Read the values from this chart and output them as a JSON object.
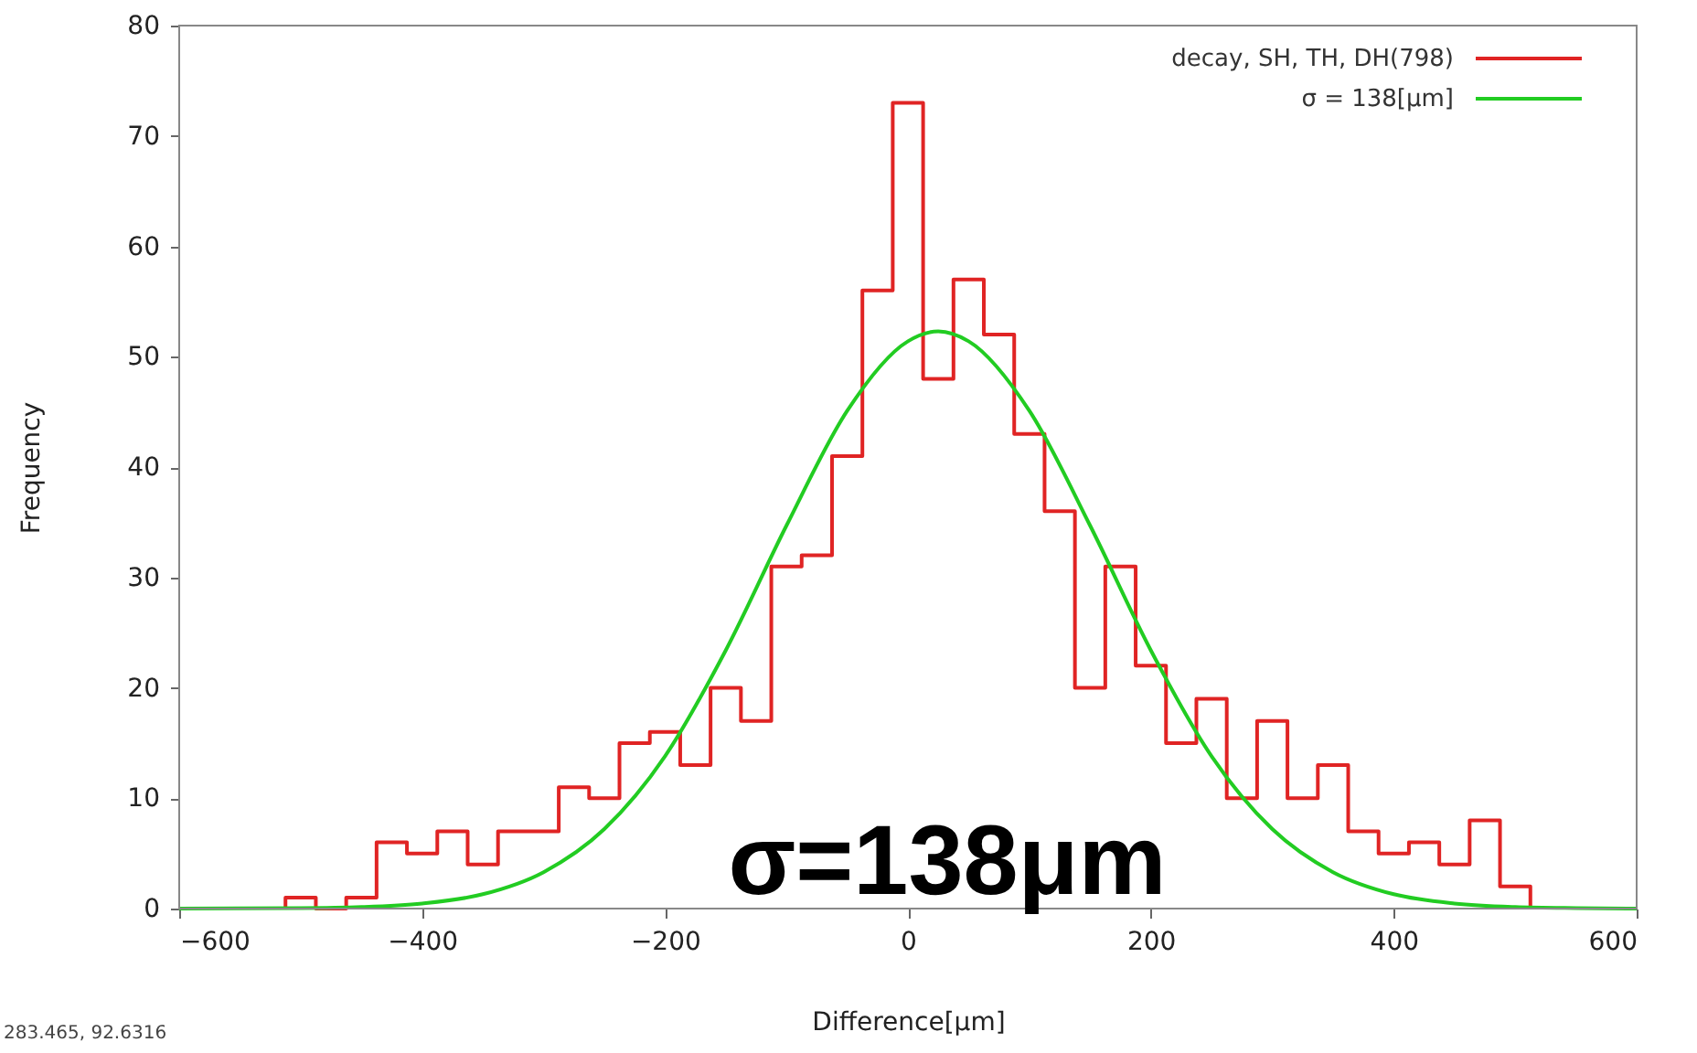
{
  "chart_data": {
    "type": "histogram",
    "xlabel": "Difference[μm]",
    "ylabel": "Frequency",
    "bins": [
      -512.5,
      -487.5,
      -462.5,
      -437.5,
      -412.5,
      -387.5,
      -362.5,
      -337.5,
      -312.5,
      -287.5,
      -262.5,
      -237.5,
      -212.5,
      -187.5,
      -162.5,
      -137.5,
      -112.5,
      -87.5,
      -62.5,
      -37.5,
      -12.5,
      12.5,
      37.5,
      62.5,
      87.5,
      112.5,
      137.5,
      162.5,
      187.5,
      212.5,
      237.5,
      262.5,
      287.5,
      312.5,
      337.5,
      362.5,
      387.5,
      412.5,
      437.5,
      462.5,
      487.5,
      512.5
    ],
    "series": [
      {
        "name": "decay, SH, TH, DH(798)",
        "color": "#e02424",
        "values": [
          1,
          0,
          1,
          6,
          5,
          7,
          4,
          7,
          7,
          11,
          10,
          15,
          16,
          13,
          20,
          17,
          31,
          32,
          41,
          56,
          73,
          48,
          57,
          52,
          43,
          36,
          20,
          31,
          22,
          15,
          19,
          10,
          17,
          10,
          13,
          7,
          5,
          6,
          4,
          8,
          2
        ]
      },
      {
        "name": "σ = 138[μm]",
        "type": "line",
        "color": "#22cc22",
        "x": [
          -600,
          -500,
          -450,
          -400,
          -350,
          -300,
          -250,
          -200,
          -150,
          -100,
          -50,
          0,
          25,
          50,
          100,
          150,
          200,
          250,
          300,
          350,
          400,
          450,
          500,
          550,
          600
        ],
        "values": [
          0,
          0.04,
          0.14,
          0.46,
          1.3,
          3.3,
          7.2,
          13.8,
          23.4,
          34.7,
          45.1,
          51.4,
          52.3,
          51.4,
          45.1,
          34.7,
          23.4,
          13.8,
          7.2,
          3.3,
          1.3,
          0.46,
          0.14,
          0.04,
          0
        ]
      }
    ],
    "xlim": [
      -600,
      600
    ],
    "xticks": [
      -600,
      -400,
      -200,
      0,
      200,
      400,
      600
    ],
    "ylim": [
      0,
      80
    ],
    "yticks": [
      0,
      10,
      20,
      30,
      40,
      50,
      60,
      70,
      80
    ],
    "legend": "top right",
    "annotations": [
      "σ=138μm",
      "283.465, 92.6316"
    ]
  }
}
